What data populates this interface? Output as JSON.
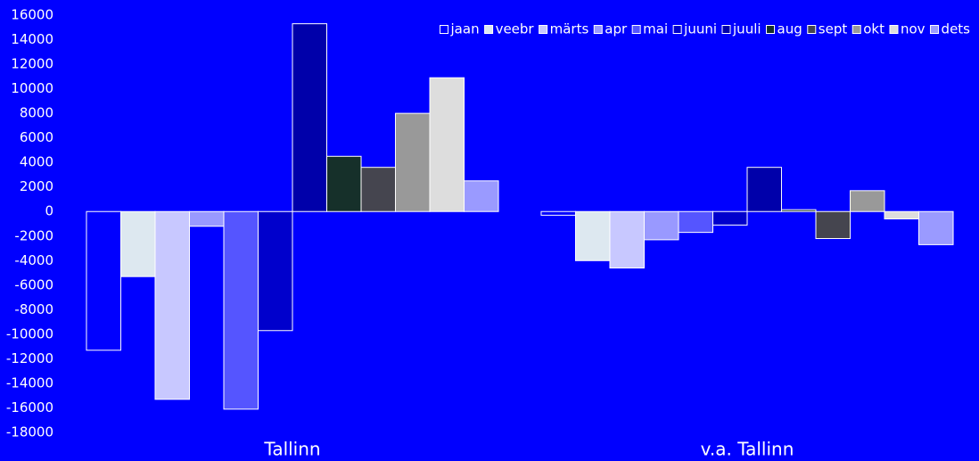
{
  "chart_data": {
    "type": "bar",
    "categories": [
      "Tallinn",
      "v.a. Tallinn"
    ],
    "series": [
      {
        "name": "jaan",
        "color": "#0000ff",
        "values": [
          -11300,
          -300
        ]
      },
      {
        "name": "veebr",
        "color": "#dde8f0",
        "values": [
          -5300,
          -4000
        ]
      },
      {
        "name": "märts",
        "color": "#c8c8ff",
        "values": [
          -15300,
          -4600
        ]
      },
      {
        "name": "apr",
        "color": "#9999ff",
        "values": [
          -1200,
          -2300
        ]
      },
      {
        "name": "mai",
        "color": "#5555ff",
        "values": [
          -16100,
          -1700
        ]
      },
      {
        "name": "juuni",
        "color": "#0000cc",
        "values": [
          -9700,
          -1100
        ]
      },
      {
        "name": "juuli",
        "color": "#0000aa",
        "values": [
          15300,
          3600
        ]
      },
      {
        "name": "aug",
        "color": "#16302a",
        "values": [
          4500,
          150
        ]
      },
      {
        "name": "sept",
        "color": "#45454f",
        "values": [
          3600,
          -2200
        ]
      },
      {
        "name": "okt",
        "color": "#999999",
        "values": [
          8000,
          1700
        ]
      },
      {
        "name": "nov",
        "color": "#dddddd",
        "values": [
          10900,
          -600
        ]
      },
      {
        "name": "dets",
        "color": "#9a9aff",
        "values": [
          2500,
          -2700
        ]
      }
    ],
    "ylim": [
      -18000,
      16000
    ],
    "yticks": [
      -18000,
      -16000,
      -14000,
      -12000,
      -10000,
      -8000,
      -6000,
      -4000,
      -2000,
      0,
      2000,
      4000,
      6000,
      8000,
      10000,
      12000,
      14000,
      16000
    ],
    "grid": false,
    "legend": "upper right"
  }
}
